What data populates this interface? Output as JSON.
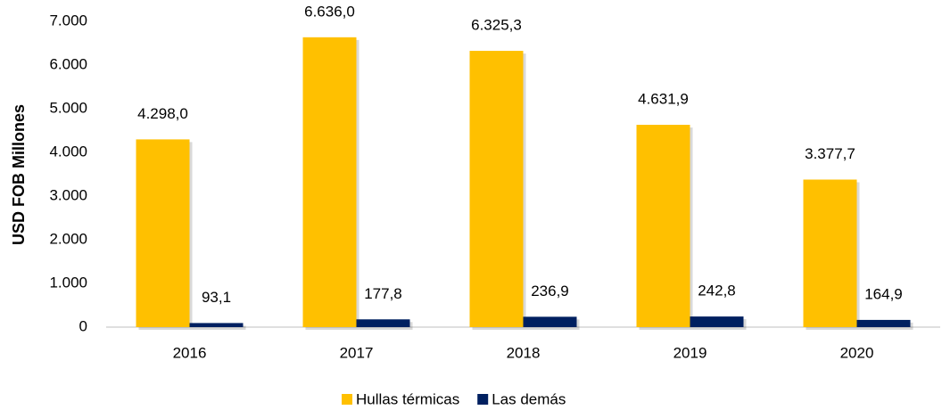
{
  "chart_data": {
    "type": "bar",
    "y_label": "USD FOB Millones",
    "categories": [
      "2016",
      "2017",
      "2018",
      "2019",
      "2020"
    ],
    "series": [
      {
        "name": "Hullas térmicas",
        "color": "#FFC000",
        "values": [
          4298.0,
          6636.0,
          6325.3,
          4631.9,
          3377.7
        ],
        "value_labels": [
          "4.298,0",
          "6.636,0",
          "6.325,3",
          "4.631,9",
          "3.377,7"
        ]
      },
      {
        "name": "Las demás",
        "color": "#002060",
        "values": [
          93.1,
          177.8,
          236.9,
          242.8,
          164.9
        ],
        "value_labels": [
          "93,1",
          "177,8",
          "236,9",
          "242,8",
          "164,9"
        ]
      }
    ],
    "ylim": [
      0,
      7000
    ],
    "yticks": [
      0,
      {
        "value": 1000,
        "label": "1.000"
      },
      {
        "value": 2000,
        "label": "2.000"
      },
      {
        "value": 3000,
        "label": "3.000"
      },
      {
        "value": 4000,
        "label": "4.000"
      },
      {
        "value": 5000,
        "label": "5.000"
      },
      {
        "value": 6000,
        "label": "6.000"
      },
      {
        "value": 7000,
        "label": "7.000"
      }
    ],
    "legend": "bottom"
  }
}
